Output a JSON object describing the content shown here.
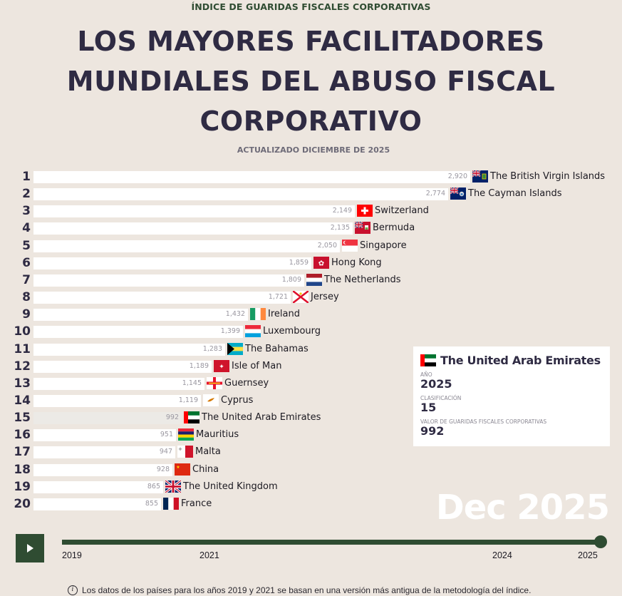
{
  "header": {
    "kicker": "ÍNDICE DE GUARIDAS FISCALES CORPORATIVAS",
    "title_lines": [
      "LOS MAYORES FACILITADORES",
      "MUNDIALES DEL ABUSO FISCAL",
      "CORPORATIVO"
    ],
    "updated": "ACTUALIZADO DICIEMBRE DE 2025"
  },
  "chart_data": {
    "type": "bar",
    "orientation": "horizontal",
    "title": "LOS MAYORES FACILITADORES MUNDIALES DEL ABUSO FISCAL CORPORATIVO",
    "subtitle": "ACTUALIZADO DICIEMBRE DE 2025",
    "xlabel": "Valor de guaridas fiscales corporativas",
    "ylabel": "Clasificación",
    "xlim": [
      0,
      2920
    ],
    "highlighted": "The United Arab Emirates",
    "categories": [
      "The British Virgin Islands",
      "The Cayman Islands",
      "Switzerland",
      "Bermuda",
      "Singapore",
      "Hong Kong",
      "The Netherlands",
      "Jersey",
      "Ireland",
      "Luxembourg",
      "The Bahamas",
      "Isle of Man",
      "Guernsey",
      "Cyprus",
      "The United Arab Emirates",
      "Mauritius",
      "Malta",
      "China",
      "The United Kingdom",
      "France"
    ],
    "ranks": [
      1,
      2,
      3,
      4,
      5,
      6,
      7,
      8,
      9,
      10,
      11,
      12,
      13,
      14,
      15,
      16,
      17,
      18,
      19,
      20
    ],
    "values": [
      2920,
      2774,
      2149,
      2135,
      2050,
      1859,
      1809,
      1721,
      1432,
      1399,
      1283,
      1189,
      1145,
      1119,
      992,
      951,
      947,
      928,
      865,
      855
    ],
    "value_labels": [
      "2,920",
      "2,774",
      "2,149",
      "2,135",
      "2,050",
      "1,859",
      "1,809",
      "1,721",
      "1,432",
      "1,399",
      "1,283",
      "1,189",
      "1,145",
      "1,119",
      "992",
      "951",
      "947",
      "928",
      "865",
      "855"
    ],
    "flags": [
      "vg",
      "ky",
      "ch",
      "bm",
      "sg",
      "hk",
      "nl",
      "je",
      "ie",
      "lu",
      "bs",
      "im",
      "gg",
      "cy",
      "ae",
      "mu",
      "mt",
      "cn",
      "gb",
      "fr"
    ],
    "grid": false,
    "legend": "none"
  },
  "tooltip": {
    "country": "The United Arab Emirates",
    "flag": "ae",
    "year_label": "AÑO",
    "year": "2025",
    "rank_label": "CLASIFICACIÓN",
    "rank": "15",
    "value_label": "VALOR DE GUARIDAS FISCALES CORPORATIVAS",
    "value": "992"
  },
  "current_date": "Dec 2025",
  "timeline": {
    "play_icon": "play-icon",
    "ticks": [
      "2019",
      "2021",
      "2024",
      "2025"
    ],
    "range": [
      2019,
      2025
    ],
    "current": 2025
  },
  "footer": {
    "info_icon": "info-icon",
    "note": "Los datos de los países para los años 2019 y 2021 se basan en una versión más antigua de la metodología del índice."
  },
  "colors": {
    "background": "#ede6df",
    "bar": "#ffffff",
    "bar_highlight": "#eceae6",
    "title": "#2f2b43",
    "accent": "#2f4c32"
  }
}
